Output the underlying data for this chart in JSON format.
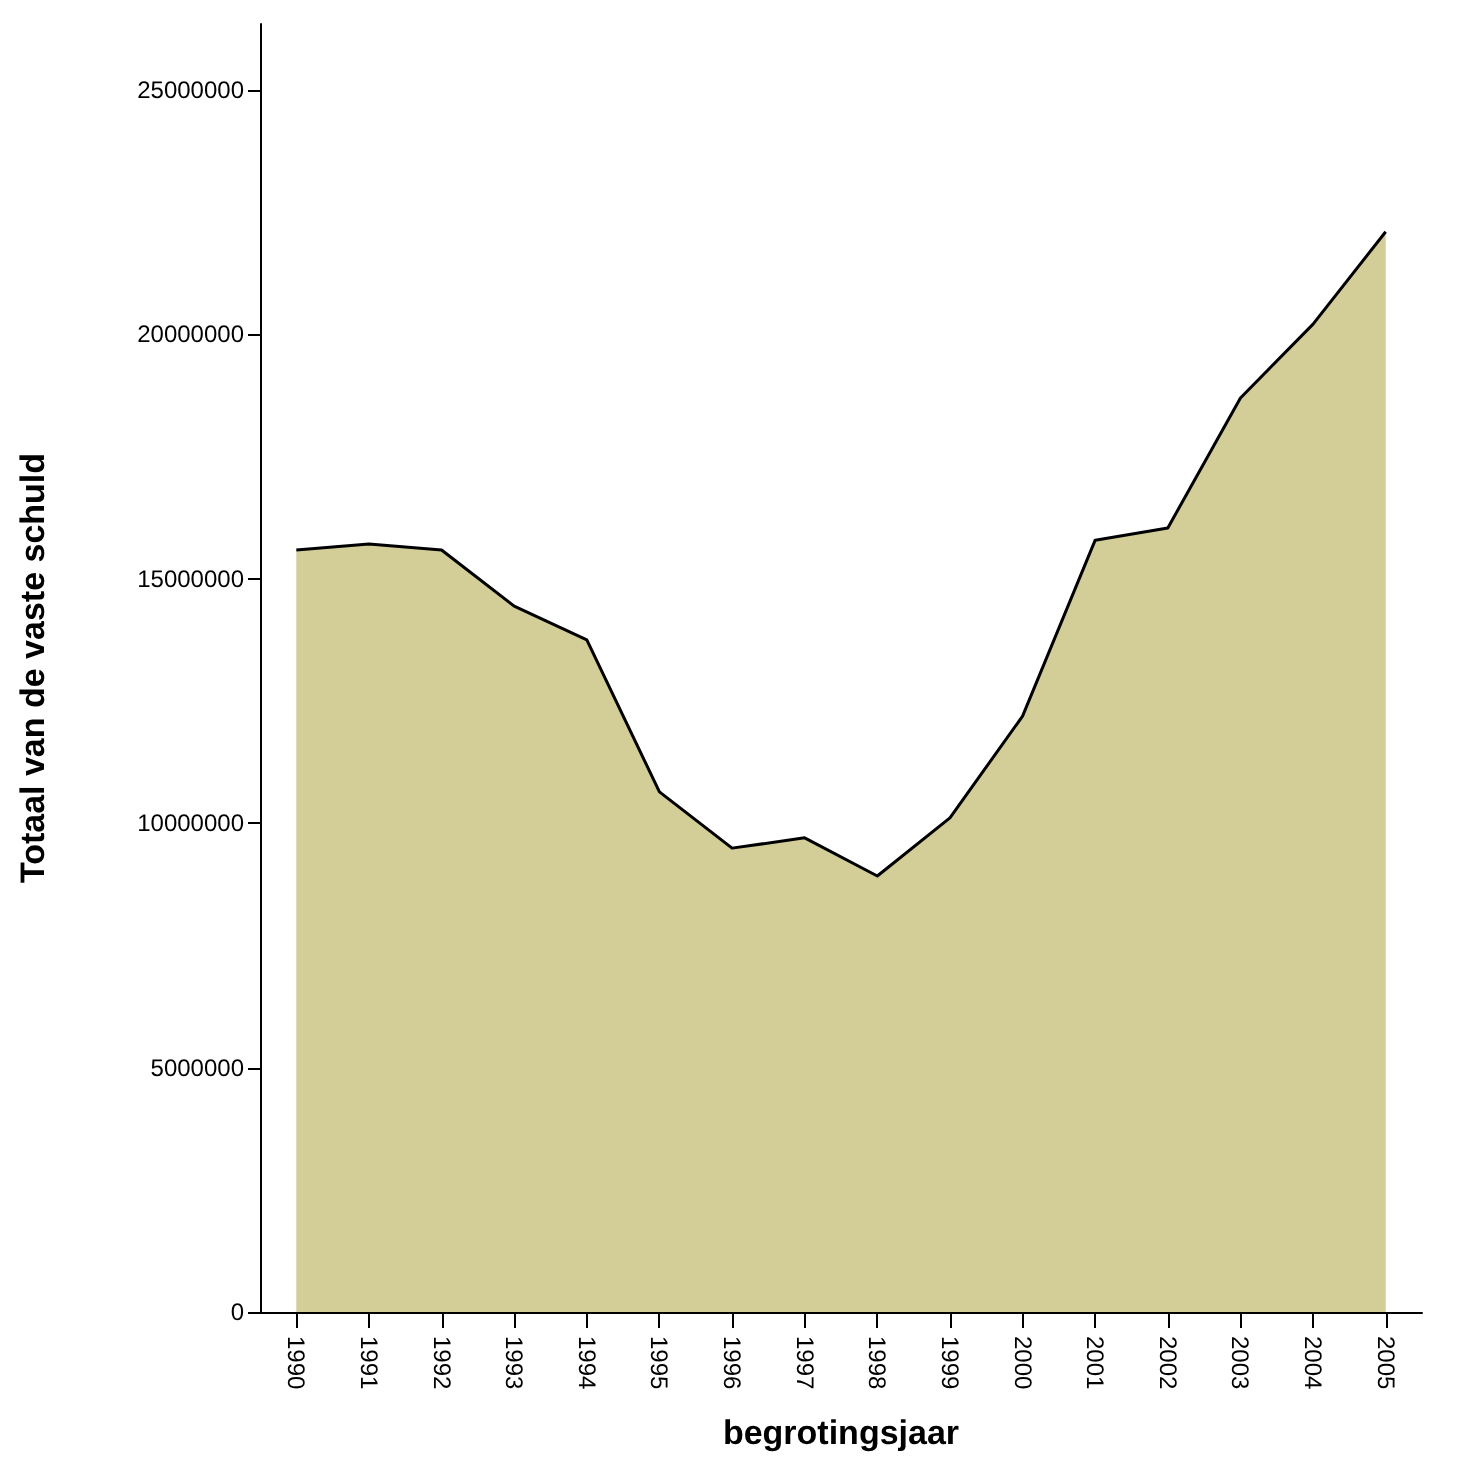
{
  "chart_data": {
    "type": "area",
    "xlabel": "begrotingsjaar",
    "ylabel": "Totaal van de vaste schuld",
    "categories": [
      "1990",
      "1991",
      "1992",
      "1993",
      "1994",
      "1995",
      "1996",
      "1997",
      "1998",
      "1999",
      "2000",
      "2001",
      "2002",
      "2003",
      "2004",
      "2005"
    ],
    "series": [
      {
        "color": "#d3cd97",
        "values": [
          15590000,
          15710000,
          15590000,
          14440000,
          13750000,
          10640000,
          9490000,
          9700000,
          8920000,
          10110000,
          12190000,
          15790000,
          16040000,
          18700000,
          20210000,
          22100000
        ]
      }
    ],
    "ylim": [
      0,
      26350000
    ],
    "yticks": [
      0,
      5000000,
      10000000,
      15000000,
      20000000,
      25000000
    ],
    "grid": false,
    "marker": "none",
    "line_style": "solid"
  }
}
